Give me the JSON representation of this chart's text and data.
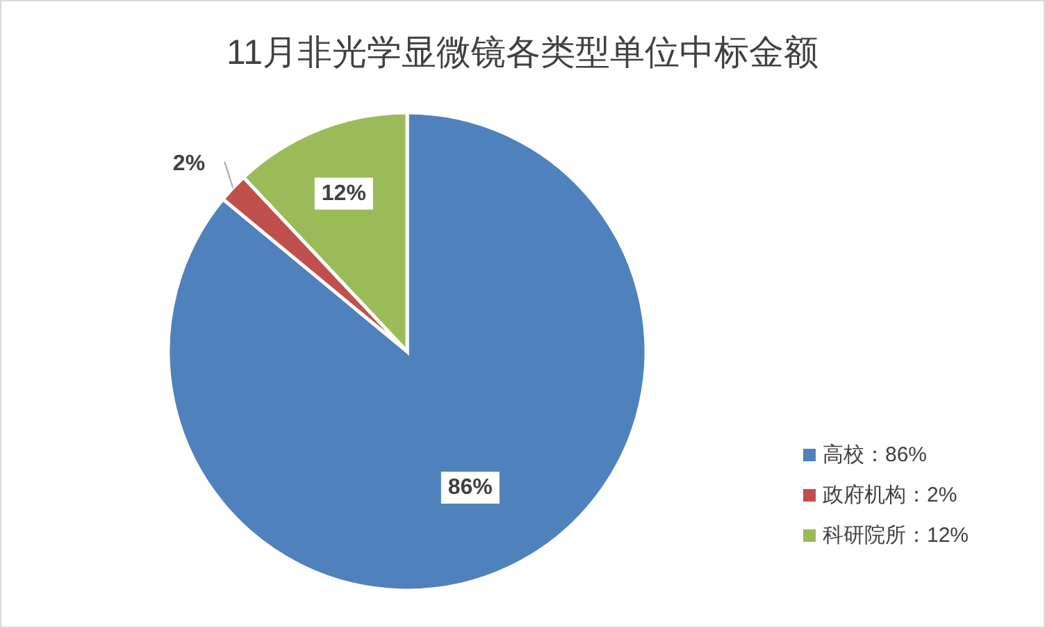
{
  "chart_data": {
    "type": "pie",
    "title": "11月非光学显微镜各类型单位中标金额",
    "categories": [
      "高校：86%",
      "政府机构：2%",
      "科研院所：12%"
    ],
    "values": [
      86,
      2,
      12
    ],
    "value_labels": [
      "86%",
      "2%",
      "12%"
    ],
    "colors": [
      "#4f81bd",
      "#c0504d",
      "#9bbb59"
    ],
    "legend": "right"
  }
}
